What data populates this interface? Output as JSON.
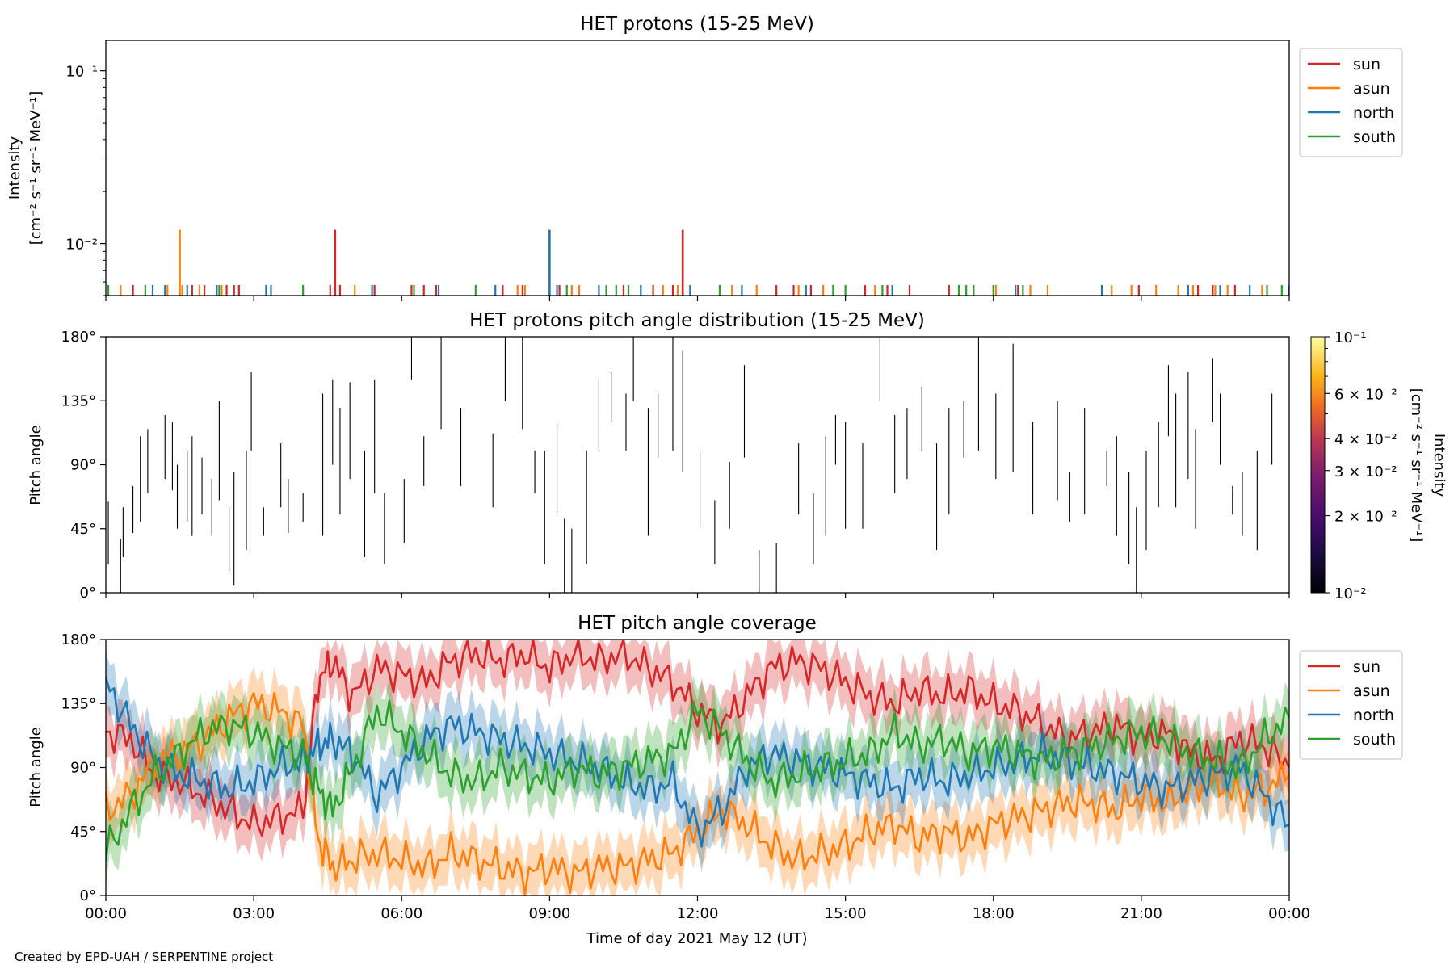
{
  "credit": "Created by EPD-UAH / SERPENTINE project",
  "colors": {
    "sun": "#d62728",
    "asun": "#ff7f0e",
    "north": "#1f77b4",
    "south": "#2ca02c"
  },
  "chart_data": [
    {
      "type": "line",
      "title": "HET protons (15-25 MeV)",
      "ylabel_line1": "Intensity",
      "ylabel_line2": "[cm⁻² s⁻¹ sr⁻¹ MeV⁻¹]",
      "yscale": "log",
      "ylim": [
        0.005,
        0.15
      ],
      "yticks": [
        "10⁻²",
        "10⁻¹"
      ],
      "xlim_hours": [
        0,
        24
      ],
      "legend_position": "upper right, outside",
      "series": [
        {
          "name": "sun",
          "color": "#d62728",
          "spikes": [
            [
              4.65,
              0.012
            ],
            [
              11.7,
              0.012
            ]
          ],
          "baseline_hours": [
            0.55,
            1.75,
            2.0,
            2.45,
            2.6,
            2.7,
            4.55,
            4.75,
            5.45,
            6.2,
            6.45,
            6.7,
            8.05,
            8.45,
            9.2,
            10.5,
            11.1,
            11.5,
            13.6,
            13.95,
            14.3,
            15.4,
            15.85,
            16.3,
            17.1,
            18.5,
            20.95,
            22.15,
            22.45,
            22.9
          ]
        },
        {
          "name": "asun",
          "color": "#ff7f0e",
          "spikes": [
            [
              1.5,
              0.012
            ]
          ],
          "baseline_hours": [
            0.3,
            1.25,
            1.55,
            1.9,
            2.35,
            5.05,
            8.35,
            8.5,
            9.45,
            9.6,
            11.3,
            11.6,
            12.7,
            13.2,
            14.05,
            14.55,
            15.6,
            18.05,
            18.75,
            19.1,
            20.4,
            20.8,
            21.3,
            21.75,
            22.05,
            22.5,
            22.75,
            23.45
          ]
        },
        {
          "name": "north",
          "color": "#1f77b4",
          "spikes": [
            [
              9.0,
              0.012
            ]
          ],
          "baseline_hours": [
            0.95,
            1.2,
            1.65,
            2.25,
            3.25,
            3.35,
            5.4,
            6.75,
            7.9,
            9.15,
            10.0,
            10.85,
            11.85,
            12.9,
            14.2,
            15.95,
            18.45,
            20.2,
            21.95,
            22.6,
            23.2,
            24.0
          ]
        },
        {
          "name": "south",
          "color": "#2ca02c",
          "spikes": [],
          "baseline_hours": [
            0.05,
            0.8,
            2.3,
            4.0,
            6.25,
            7.5,
            9.35,
            10.15,
            10.35,
            10.6,
            12.45,
            14.75,
            15.0,
            15.75,
            17.3,
            17.45,
            17.6,
            18.0,
            18.6,
            23.55,
            23.85
          ]
        }
      ]
    },
    {
      "type": "heatmap",
      "title": "HET protons pitch angle distribution (15-25 MeV)",
      "ylabel": "Pitch angle",
      "ylim_deg": [
        0,
        180
      ],
      "yticks": [
        "0°",
        "45°",
        "90°",
        "135°",
        "180°"
      ],
      "xlim_hours": [
        0,
        24
      ],
      "colorbar": {
        "label": "Intensity [cm⁻² s⁻¹ sr⁻¹ MeV⁻¹]",
        "label_line1": "Intensity",
        "label_line2": "[cm⁻² s⁻¹ sr⁻¹ MeV⁻¹]",
        "scale": "log",
        "range": [
          0.01,
          0.1
        ],
        "ticks": [
          {
            "value": 0.01,
            "label": "10⁻²"
          },
          {
            "value": 0.02,
            "label": "2 × 10⁻²"
          },
          {
            "value": 0.03,
            "label": "3 × 10⁻²"
          },
          {
            "value": 0.04,
            "label": "4 × 10⁻²"
          },
          {
            "value": 0.06,
            "label": "6 × 10⁻²"
          },
          {
            "value": 0.1,
            "label": "10⁻¹"
          }
        ],
        "colormap": "inferno"
      },
      "segments_hours_deg": [
        [
          0.05,
          20,
          64
        ],
        [
          0.3,
          0,
          38
        ],
        [
          0.35,
          25,
          60
        ],
        [
          0.55,
          42,
          75
        ],
        [
          0.7,
          50,
          110
        ],
        [
          0.85,
          70,
          115
        ],
        [
          1.2,
          80,
          125
        ],
        [
          1.35,
          72,
          120
        ],
        [
          1.45,
          45,
          90
        ],
        [
          1.65,
          50,
          100
        ],
        [
          1.75,
          40,
          110
        ],
        [
          1.95,
          55,
          95
        ],
        [
          2.15,
          40,
          80
        ],
        [
          2.3,
          65,
          135
        ],
        [
          2.5,
          15,
          60
        ],
        [
          2.6,
          5,
          85
        ],
        [
          2.85,
          30,
          100
        ],
        [
          2.95,
          100,
          155
        ],
        [
          3.2,
          40,
          60
        ],
        [
          3.55,
          60,
          105
        ],
        [
          3.7,
          42,
          80
        ],
        [
          4.0,
          50,
          70
        ],
        [
          4.4,
          40,
          140
        ],
        [
          4.6,
          90,
          150
        ],
        [
          4.75,
          55,
          130
        ],
        [
          4.95,
          80,
          148
        ],
        [
          5.25,
          25,
          100
        ],
        [
          5.45,
          70,
          150
        ],
        [
          5.65,
          20,
          70
        ],
        [
          6.05,
          35,
          80
        ],
        [
          6.2,
          150,
          180
        ],
        [
          6.45,
          75,
          110
        ],
        [
          6.8,
          115,
          180
        ],
        [
          7.2,
          75,
          130
        ],
        [
          7.85,
          60,
          112
        ],
        [
          8.1,
          135,
          180
        ],
        [
          8.45,
          115,
          180
        ],
        [
          8.7,
          70,
          100
        ],
        [
          8.9,
          20,
          100
        ],
        [
          9.15,
          55,
          120
        ],
        [
          9.3,
          0,
          52
        ],
        [
          9.45,
          0,
          45
        ],
        [
          9.75,
          20,
          100
        ],
        [
          10.0,
          100,
          150
        ],
        [
          10.25,
          120,
          155
        ],
        [
          10.55,
          100,
          140
        ],
        [
          10.7,
          135,
          180
        ],
        [
          11.0,
          40,
          130
        ],
        [
          11.2,
          95,
          140
        ],
        [
          11.5,
          100,
          180
        ],
        [
          11.7,
          85,
          170
        ],
        [
          12.05,
          45,
          100
        ],
        [
          12.35,
          20,
          65
        ],
        [
          12.65,
          45,
          92
        ],
        [
          12.95,
          95,
          160
        ],
        [
          13.25,
          0,
          30
        ],
        [
          13.6,
          0,
          35
        ],
        [
          14.05,
          55,
          105
        ],
        [
          14.35,
          20,
          70
        ],
        [
          14.6,
          40,
          110
        ],
        [
          14.8,
          90,
          125
        ],
        [
          15.0,
          45,
          120
        ],
        [
          15.35,
          45,
          105
        ],
        [
          15.7,
          135,
          180
        ],
        [
          16.0,
          70,
          125
        ],
        [
          16.25,
          80,
          130
        ],
        [
          16.55,
          100,
          145
        ],
        [
          16.85,
          30,
          105
        ],
        [
          17.1,
          55,
          130
        ],
        [
          17.4,
          95,
          135
        ],
        [
          17.7,
          100,
          180
        ],
        [
          18.05,
          80,
          140
        ],
        [
          18.4,
          85,
          175
        ],
        [
          18.8,
          55,
          120
        ],
        [
          19.3,
          65,
          135
        ],
        [
          19.55,
          50,
          85
        ],
        [
          19.85,
          55,
          130
        ],
        [
          20.3,
          75,
          100
        ],
        [
          20.5,
          40,
          110
        ],
        [
          20.75,
          20,
          85
        ],
        [
          20.9,
          0,
          60
        ],
        [
          21.1,
          30,
          100
        ],
        [
          21.35,
          60,
          120
        ],
        [
          21.55,
          110,
          160
        ],
        [
          21.7,
          60,
          140
        ],
        [
          21.95,
          80,
          155
        ],
        [
          22.1,
          45,
          115
        ],
        [
          22.45,
          120,
          165
        ],
        [
          22.6,
          90,
          140
        ],
        [
          22.85,
          55,
          75
        ],
        [
          23.05,
          40,
          85
        ],
        [
          23.35,
          30,
          100
        ],
        [
          23.65,
          90,
          140
        ]
      ]
    },
    {
      "type": "area",
      "title": "HET pitch angle coverage",
      "ylabel": "Pitch angle",
      "ylim_deg": [
        0,
        180
      ],
      "yticks": [
        "0°",
        "45°",
        "90°",
        "135°",
        "180°"
      ],
      "xlabel": "Time of day 2021 May 12 (UT)",
      "xticks": [
        "00:00",
        "03:00",
        "06:00",
        "09:00",
        "12:00",
        "15:00",
        "18:00",
        "21:00",
        "00:00"
      ],
      "xlim_hours": [
        0,
        24
      ],
      "legend_position": "upper right, outside",
      "band_halfwidth_deg": 18,
      "series": [
        {
          "name": "sun",
          "color": "#d62728",
          "x_hours": [
            0,
            0.5,
            1,
            1.5,
            2,
            2.5,
            3,
            3.5,
            4,
            4.3,
            4.6,
            5,
            5.5,
            6,
            6.5,
            7,
            7.5,
            8,
            8.5,
            9,
            9.5,
            10,
            10.5,
            11,
            11.5,
            12,
            12.5,
            13,
            13.5,
            14,
            14.5,
            15,
            15.5,
            16,
            16.5,
            17,
            17.5,
            18,
            18.5,
            19,
            19.5,
            20,
            20.5,
            21,
            21.5,
            22,
            22.5,
            23,
            23.5,
            24
          ],
          "y_deg": [
            115,
            110,
            85,
            80,
            70,
            60,
            50,
            55,
            60,
            150,
            165,
            140,
            160,
            155,
            150,
            165,
            170,
            165,
            170,
            160,
            170,
            165,
            170,
            160,
            150,
            130,
            120,
            140,
            160,
            165,
            160,
            150,
            140,
            135,
            145,
            140,
            145,
            135,
            130,
            120,
            110,
            115,
            120,
            110,
            115,
            100,
            95,
            110,
            105,
            90
          ]
        },
        {
          "name": "asun",
          "color": "#ff7f0e",
          "x_hours": [
            0,
            0.5,
            1,
            1.5,
            2,
            2.5,
            3,
            3.5,
            4,
            4.3,
            4.6,
            5,
            5.5,
            6,
            6.5,
            7,
            7.5,
            8,
            8.5,
            9,
            9.5,
            10,
            10.5,
            11,
            11.5,
            12,
            12.5,
            13,
            13.5,
            14,
            14.5,
            15,
            15.5,
            16,
            16.5,
            17,
            17.5,
            18,
            18.5,
            19,
            19.5,
            20,
            20.5,
            21,
            21.5,
            22,
            22.5,
            23,
            23.5,
            24
          ],
          "y_deg": [
            60,
            70,
            95,
            100,
            110,
            125,
            135,
            130,
            120,
            40,
            20,
            25,
            30,
            25,
            20,
            30,
            25,
            20,
            15,
            20,
            15,
            20,
            20,
            25,
            30,
            45,
            60,
            50,
            35,
            25,
            30,
            35,
            45,
            50,
            40,
            45,
            40,
            50,
            55,
            60,
            65,
            65,
            60,
            70,
            65,
            75,
            80,
            70,
            75,
            85
          ]
        },
        {
          "name": "north",
          "color": "#1f77b4",
          "x_hours": [
            0,
            0.5,
            1,
            1.5,
            2,
            2.5,
            3,
            3.5,
            4,
            4.3,
            4.6,
            5,
            5.5,
            6,
            6.5,
            7,
            7.5,
            8,
            8.5,
            9,
            9.5,
            10,
            10.5,
            11,
            11.5,
            12,
            12.5,
            13,
            13.5,
            14,
            14.5,
            15,
            15.5,
            16,
            16.5,
            17,
            17.5,
            18,
            18.5,
            19,
            19.5,
            20,
            20.5,
            21,
            21.5,
            22,
            22.5,
            23,
            23.5,
            24
          ],
          "y_deg": [
            150,
            120,
            95,
            85,
            80,
            75,
            80,
            90,
            95,
            105,
            110,
            100,
            70,
            90,
            110,
            120,
            115,
            110,
            105,
            100,
            95,
            90,
            80,
            75,
            80,
            45,
            60,
            90,
            100,
            95,
            90,
            85,
            80,
            75,
            85,
            80,
            85,
            90,
            95,
            100,
            95,
            90,
            85,
            80,
            75,
            80,
            85,
            90,
            70,
            50
          ]
        },
        {
          "name": "south",
          "color": "#2ca02c",
          "x_hours": [
            0,
            0.5,
            1,
            1.5,
            2,
            2.5,
            3,
            3.5,
            4,
            4.3,
            4.6,
            5,
            5.5,
            6,
            6.5,
            7,
            7.5,
            8,
            8.5,
            9,
            9.5,
            10,
            10.5,
            11,
            11.5,
            12,
            12.5,
            13,
            13.5,
            14,
            14.5,
            15,
            15.5,
            16,
            16.5,
            17,
            17.5,
            18,
            18.5,
            19,
            19.5,
            20,
            20.5,
            21,
            21.5,
            22,
            22.5,
            23,
            23.5,
            24
          ],
          "y_deg": [
            30,
            60,
            85,
            100,
            115,
            120,
            115,
            105,
            100,
            75,
            60,
            90,
            130,
            115,
            100,
            85,
            80,
            90,
            85,
            80,
            90,
            85,
            90,
            95,
            100,
            130,
            115,
            95,
            80,
            85,
            90,
            95,
            100,
            115,
            105,
            110,
            100,
            105,
            100,
            95,
            100,
            105,
            110,
            115,
            110,
            100,
            95,
            90,
            110,
            125
          ]
        }
      ]
    }
  ]
}
